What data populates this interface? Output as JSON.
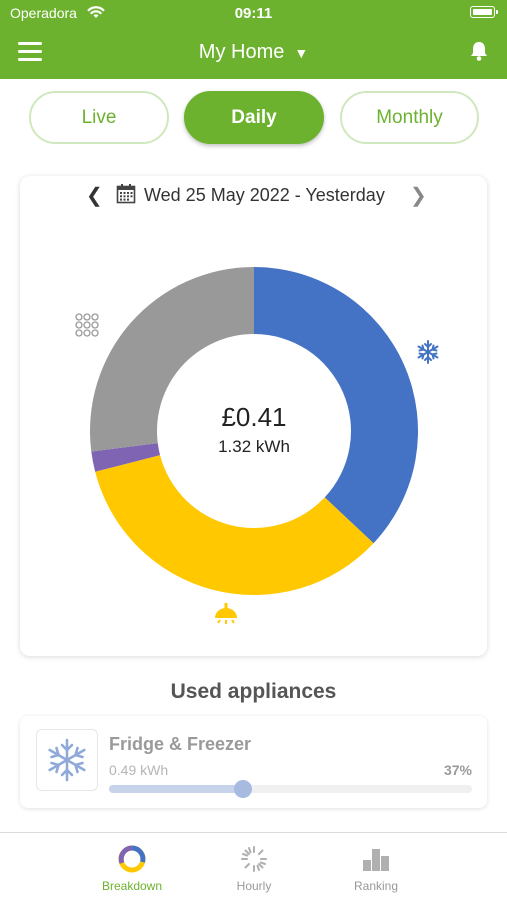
{
  "status": {
    "carrier": "Operadora",
    "time": "09:11"
  },
  "nav": {
    "title": "My Home",
    "caret": "▼"
  },
  "segments": [
    {
      "label": "Live",
      "active": false
    },
    {
      "label": "Daily",
      "active": true
    },
    {
      "label": "Monthly",
      "active": false
    }
  ],
  "date": {
    "text": "Wed 25 May 2022 - Yesterday"
  },
  "summary": {
    "cost": "£0.41",
    "energy": "1.32 kWh"
  },
  "chart_data": {
    "type": "pie",
    "donut": true,
    "series": [
      {
        "icon": "snowflake-icon",
        "percent": 37,
        "color": "#4472c4"
      },
      {
        "icon": "lamp-icon",
        "percent": 34,
        "color": "#ffc800"
      },
      {
        "icon": "other-icon",
        "percent": 2,
        "color": "#8064b4"
      },
      {
        "icon": "grid-icon",
        "percent": 27,
        "color": "#999999"
      }
    ]
  },
  "appliances_title": "Used appliances",
  "appliances": [
    {
      "name": "Fridge & Freezer",
      "energy": "0.49 kWh",
      "percent_label": "37%",
      "percent": 37
    }
  ],
  "tabs": [
    {
      "label": "Breakdown",
      "active": true
    },
    {
      "label": "Hourly",
      "active": false
    },
    {
      "label": "Ranking",
      "active": false
    }
  ],
  "colors": {
    "brand": "#6db22f",
    "fridge": "#4472c4",
    "lighting": "#ffc800"
  }
}
